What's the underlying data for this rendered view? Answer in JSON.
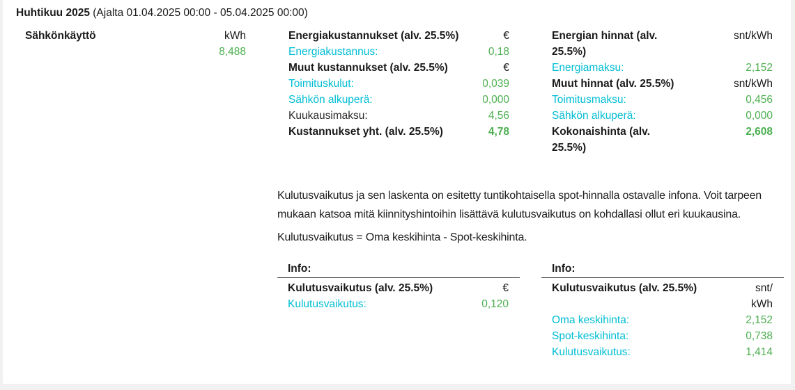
{
  "header": {
    "month": "Huhtikuu 2025",
    "period": "(Ajalta 01.04.2025 00:00 - 05.04.2025 00:00)"
  },
  "colors": {
    "accent_teal": "#00bdd4",
    "value_green": "#4caf50",
    "page_background": "#f1f1f1",
    "card_background": "#ffffff"
  },
  "usage": {
    "title": "Sähkönkäyttö",
    "unit": "kWh",
    "value": "8,488"
  },
  "energy_costs": {
    "title": "Energiakustannukset (alv. 25.5%)",
    "title_unit": "€",
    "energiakustannus_label": "Energiakustannus:",
    "energiakustannus_value": "0,18",
    "muut_title": "Muut kustannukset (alv. 25.5%)",
    "muut_unit": "€",
    "toimituskulut_label": "Toimituskulut:",
    "toimituskulut_value": "0,039",
    "alkupera_label": "Sähkön alkuperä:",
    "alkupera_value": "0,000",
    "kuukausimaksu_label": "Kuukausimaksu:",
    "kuukausimaksu_value": "4,56",
    "total_label": "Kustannukset yht. (alv. 25.5%)",
    "total_value": "4,78"
  },
  "energy_prices": {
    "title": "Energian hinnat (alv. 25.5%)",
    "title_unit": "snt/kWh",
    "energiamaksu_label": "Energiamaksu:",
    "energiamaksu_value": "2,152",
    "muut_title": "Muut hinnat (alv. 25.5%)",
    "muut_unit": "snt/kWh",
    "toimitusmaksu_label": "Toimitusmaksu:",
    "toimitusmaksu_value": "0,456",
    "alkupera_label": "Sähkön alkuperä:",
    "alkupera_value": "0,000",
    "total_label": "Kokonaishinta (alv. 25.5%)",
    "total_value": "2,608"
  },
  "notes": {
    "paragraph1": "Kulutusvaikutus ja sen laskenta on esitetty tuntikohtaisella spot-hinnalla ostavalle infona. Voit tarpeen mukaan katsoa mitä kiinnityshintoihin lisättävä kulutusvaikutus on kohdallasi ollut eri kuukausina.",
    "paragraph2": "Kulutusvaikutus = Oma keskihinta - Spot-keskihinta."
  },
  "info_eur": {
    "title": "Info:",
    "header_label": "Kulutusvaikutus (alv. 25.5%)",
    "header_unit": "€",
    "kulutusvaikutus_label": "Kulutusvaikutus:",
    "kulutusvaikutus_value": "0,120"
  },
  "info_snt": {
    "title": "Info:",
    "header_label": "Kulutusvaikutus (alv. 25.5%)",
    "header_unit_line1": "snt/",
    "header_unit_line2": "kWh",
    "oma_label": "Oma keskihinta:",
    "oma_value": "2,152",
    "spot_label": "Spot-keskihinta:",
    "spot_value": "0,738",
    "kulutusvaikutus_label": "Kulutusvaikutus:",
    "kulutusvaikutus_value": "1,414"
  }
}
